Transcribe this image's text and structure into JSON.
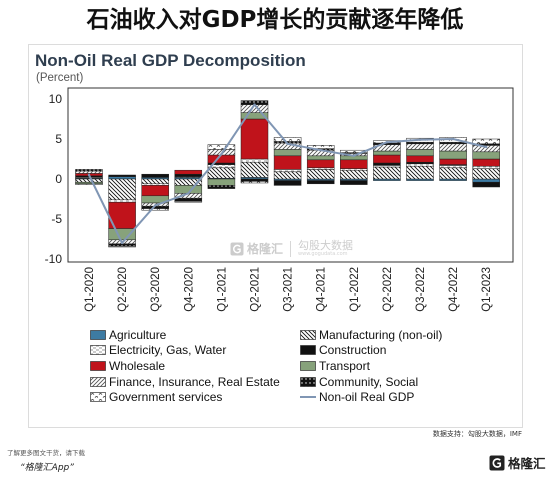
{
  "headline": "石油收入对GDP增长的贡献逐年降低",
  "chart_data": {
    "type": "bar",
    "stacked": true,
    "title": "Non-Oil Real GDP Decomposition",
    "ylabel": "(Percent)",
    "xlabel": "",
    "ylim": [
      -10.5,
      11.5
    ],
    "yticks": [
      10,
      5,
      0,
      -5,
      -10
    ],
    "grid": false,
    "legend_position": "bottom",
    "categories": [
      "Q1-2020",
      "Q2-2020",
      "Q3-2020",
      "Q4-2020",
      "Q1-2021",
      "Q2-2021",
      "Q3-2021",
      "Q4-2021",
      "Q1-2022",
      "Q2-2022",
      "Q3-2022",
      "Q4-2022",
      "Q1-2023"
    ],
    "series": [
      {
        "name": "Agriculture",
        "color": "#3d7ba3",
        "pattern": null,
        "values": [
          0.1,
          0.3,
          0.2,
          0.2,
          0.1,
          0.2,
          -0.2,
          -0.2,
          -0.2,
          -0.2,
          -0.2,
          -0.2,
          -0.4
        ]
      },
      {
        "name": "Manufacturing (non-oil)",
        "color": "#ffffff",
        "pattern": "backslash-hatch",
        "values": [
          -0.4,
          -2.6,
          -0.6,
          -0.8,
          1.3,
          1.9,
          0.9,
          1.2,
          1.1,
          1.5,
          1.6,
          1.4,
          1.3
        ]
      },
      {
        "name": "Electricity, Gas, Water",
        "color": "#ffffff",
        "pattern": "dash-hatch",
        "values": [
          0.1,
          -0.3,
          -0.2,
          0.1,
          0.4,
          0.4,
          0.3,
          0.2,
          0.2,
          0.2,
          0.3,
          0.3,
          0.3
        ]
      },
      {
        "name": "Construction",
        "color": "#111111",
        "pattern": null,
        "values": [
          0.2,
          0.2,
          0.4,
          0.3,
          0.2,
          -0.3,
          -0.6,
          -0.4,
          -0.5,
          0.3,
          0.2,
          0.1,
          -0.6
        ]
      },
      {
        "name": "Wholesale",
        "color": "#c0131b",
        "pattern": null,
        "values": [
          0.3,
          -3.3,
          -1.3,
          0.5,
          1.0,
          5.0,
          1.7,
          1.0,
          1.1,
          1.0,
          0.8,
          0.7,
          0.9
        ]
      },
      {
        "name": "Transport",
        "color": "#87a27b",
        "pattern": null,
        "values": [
          -0.2,
          -1.4,
          -0.9,
          -1.0,
          -0.8,
          0.8,
          0.8,
          0.5,
          0.5,
          0.5,
          0.8,
          1.0,
          0.9
        ]
      },
      {
        "name": "Finance, Insurance, Real Estate",
        "color": "#ffffff",
        "pattern": "slash-hatch",
        "values": [
          0.3,
          -0.5,
          -0.4,
          -0.6,
          0.7,
          1.0,
          0.8,
          0.7,
          0.3,
          0.8,
          0.7,
          0.9,
          0.8
        ]
      },
      {
        "name": "Community, Social",
        "color": "#111111",
        "pattern": "dots-on-black",
        "values": [
          0.2,
          -0.3,
          -0.3,
          -0.4,
          -0.4,
          0.5,
          0.2,
          0.2,
          0.1,
          0.2,
          0.2,
          0.2,
          0.2
        ]
      },
      {
        "name": "Government services",
        "color": "#ffffff",
        "pattern": "arc-marks",
        "values": [
          -0.1,
          -0.1,
          -0.2,
          -0.1,
          0.6,
          -0.2,
          0.5,
          0.4,
          0.3,
          0.3,
          0.5,
          0.6,
          0.6
        ]
      }
    ],
    "line": {
      "name": "Non-oil Real GDP",
      "color": "#8096b4",
      "values": [
        0.5,
        -8.0,
        -3.3,
        -1.8,
        3.1,
        9.3,
        4.4,
        3.6,
        2.9,
        4.6,
        4.9,
        5.0,
        4.0
      ]
    }
  },
  "source": "数据支持：勾股大数据，IMF",
  "footer": {
    "prompt": "了解更多图文干货，请下载",
    "app": "“格隆汇App”",
    "brand": "格隆汇",
    "logo_icon": "gelonghui-g-icon"
  },
  "watermark": {
    "brand": "格隆汇",
    "partner": "勾股大数据",
    "url": "www.gogudata.com"
  }
}
